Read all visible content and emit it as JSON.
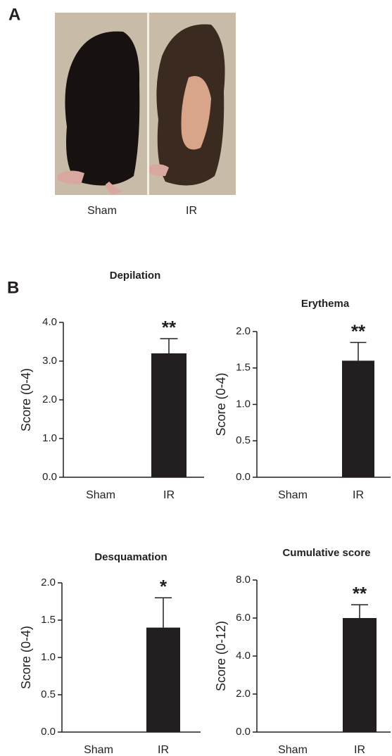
{
  "panel_a": {
    "label": "A",
    "captions": [
      "Sham",
      "IR"
    ]
  },
  "panel_b": {
    "label": "B"
  },
  "chart_data": [
    {
      "type": "bar",
      "title": "Depilation",
      "y_label": "Score (0-4)",
      "categories": [
        "Sham",
        "IR"
      ],
      "values": [
        0,
        3.2
      ],
      "errors": [
        null,
        0.38
      ],
      "annotations": [
        null,
        "**"
      ],
      "color": "#231f20",
      "ylim": [
        0,
        4
      ],
      "yticks": [
        {
          "value": 0,
          "label": "0.0"
        },
        {
          "value": 1,
          "label": "1.0"
        },
        {
          "value": 2,
          "label": "2.0"
        },
        {
          "value": 3,
          "label": "3.0"
        },
        {
          "value": 4,
          "label": "4.0"
        }
      ]
    },
    {
      "type": "bar",
      "title": "Erythema",
      "y_label": "Score (0-4)",
      "categories": [
        "Sham",
        "IR"
      ],
      "values": [
        0,
        1.6
      ],
      "errors": [
        null,
        0.25
      ],
      "annotations": [
        null,
        "**"
      ],
      "color": "#231f20",
      "ylim": [
        0,
        2
      ],
      "yticks": [
        {
          "value": 0,
          "label": "0.0"
        },
        {
          "value": 0.5,
          "label": "0.5"
        },
        {
          "value": 1,
          "label": "1.0"
        },
        {
          "value": 1.5,
          "label": "1.5"
        },
        {
          "value": 2,
          "label": "2.0"
        }
      ]
    },
    {
      "type": "bar",
      "title": "Desquamation",
      "y_label": "Score (0-4)",
      "categories": [
        "Sham",
        "IR"
      ],
      "values": [
        0,
        1.4
      ],
      "errors": [
        null,
        0.4
      ],
      "annotations": [
        null,
        "*"
      ],
      "color": "#231f20",
      "ylim": [
        0,
        2
      ],
      "yticks": [
        {
          "value": 0,
          "label": "0.0"
        },
        {
          "value": 0.5,
          "label": "0.5"
        },
        {
          "value": 1,
          "label": "1.0"
        },
        {
          "value": 1.5,
          "label": "1.5"
        },
        {
          "value": 2,
          "label": "2.0"
        }
      ]
    },
    {
      "type": "bar",
      "title": "Cumulative score",
      "y_label": "Score (0-12)",
      "categories": [
        "Sham",
        "IR"
      ],
      "values": [
        0,
        6
      ],
      "errors": [
        null,
        0.7
      ],
      "annotations": [
        null,
        "**"
      ],
      "color": "#231f20",
      "ylim": [
        0,
        8
      ],
      "yticks": [
        {
          "value": 0,
          "label": "0.0"
        },
        {
          "value": 2,
          "label": "2.0"
        },
        {
          "value": 4,
          "label": "4.0"
        },
        {
          "value": 6,
          "label": "6.0"
        },
        {
          "value": 8,
          "label": "8.0"
        }
      ]
    }
  ]
}
